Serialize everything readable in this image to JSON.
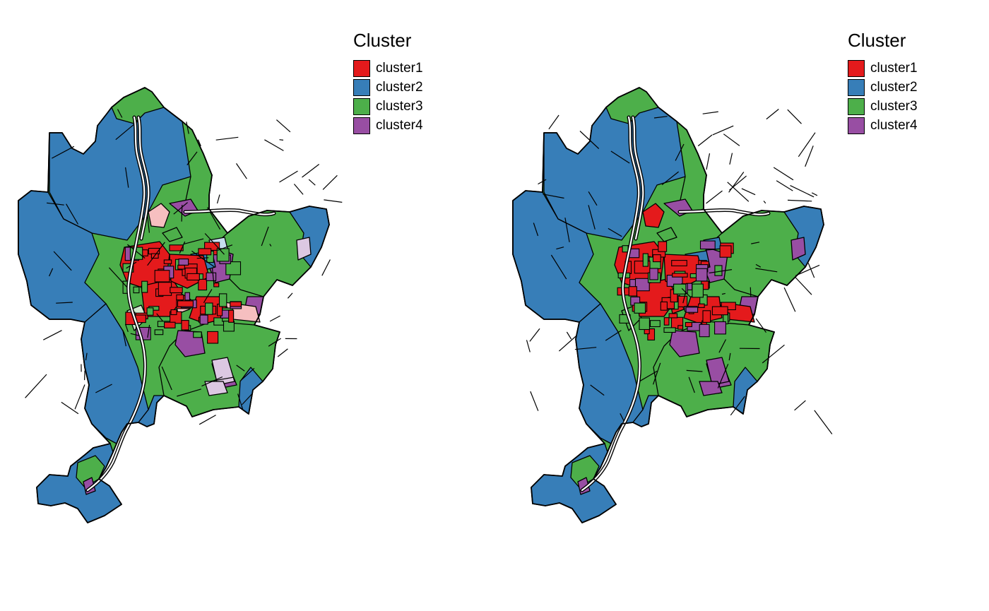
{
  "clusters": [
    {
      "label": "cluster1",
      "color": "#E41A1C",
      "light": "#F6BFC0"
    },
    {
      "label": "cluster2",
      "color": "#377EB8",
      "light": "#C7DDEE"
    },
    {
      "label": "cluster3",
      "color": "#4DAF4A",
      "light": "#CFE9CE"
    },
    {
      "label": "cluster4",
      "color": "#984EA3",
      "light": "#DCC8E2"
    }
  ],
  "panels": [
    {
      "legend": {
        "title": "Cluster",
        "items": [
          "cluster1",
          "cluster2",
          "cluster3",
          "cluster4"
        ]
      },
      "uncertain_shading": true
    },
    {
      "legend": {
        "title": "Cluster",
        "items": [
          "cluster1",
          "cluster2",
          "cluster3",
          "cluster4"
        ]
      },
      "uncertain_shading": false
    }
  ]
}
